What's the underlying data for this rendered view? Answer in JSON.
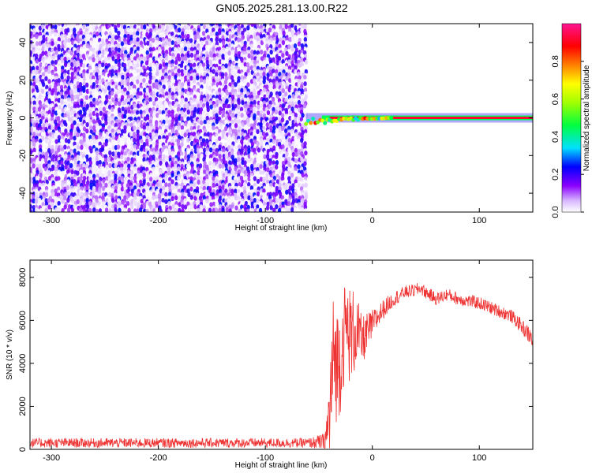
{
  "title": "GN05.2025.281.13.00.R22",
  "chart_data": [
    {
      "type": "heatmap",
      "name": "spectrogram",
      "xlabel": "Height of straight line (km)",
      "ylabel": "Frequency (Hz)",
      "xlim": [
        -320,
        150
      ],
      "ylim": [
        -50,
        50
      ],
      "xticks": [
        -300,
        -200,
        -100,
        0,
        100
      ],
      "yticks": [
        -40,
        -20,
        0,
        20,
        40
      ],
      "noise_region_x": [
        -320,
        -62
      ],
      "noise_frequency_range": [
        -50,
        50
      ],
      "noise_amplitude_range": [
        0.0,
        0.25
      ],
      "carrier_frequency": 0,
      "carrier_start_x": -62,
      "carrier_amplitude_range": [
        0.25,
        1.0
      ],
      "colorbar": {
        "label": "Normalized spectral amplitude",
        "range": [
          0.0,
          1.0
        ],
        "ticks": [
          0.0,
          0.2,
          0.4,
          0.6,
          0.8
        ],
        "colors": [
          "#ffffff",
          "#8b00ff",
          "#0000ff",
          "#00ffff",
          "#00ff00",
          "#ffff00",
          "#ff8000",
          "#ff0000",
          "#ff00aa"
        ]
      }
    },
    {
      "type": "line",
      "name": "snr",
      "xlabel": "Height of straight line (km)",
      "ylabel": "SNR (10 * v/v)",
      "xlim": [
        -320,
        150
      ],
      "ylim": [
        0,
        8800
      ],
      "xticks": [
        -300,
        -200,
        -100,
        0,
        100
      ],
      "yticks": [
        0,
        2000,
        4000,
        6000,
        8000
      ],
      "color": "#ee3333",
      "series": [
        {
          "name": "SNR",
          "x": [
            -320,
            -300,
            -250,
            -200,
            -150,
            -100,
            -60,
            -45,
            -42,
            -40,
            -38,
            -36,
            -34,
            -30,
            -25,
            -20,
            -15,
            -10,
            0,
            10,
            20,
            30,
            40,
            45,
            50,
            60,
            70,
            80,
            90,
            100,
            110,
            120,
            130,
            140,
            150
          ],
          "y": [
            300,
            300,
            300,
            300,
            300,
            300,
            300,
            350,
            800,
            1600,
            3000,
            4500,
            4000,
            4200,
            5800,
            5200,
            5600,
            5000,
            5800,
            6500,
            7000,
            7300,
            7400,
            7500,
            7300,
            7000,
            7200,
            7000,
            6900,
            6800,
            6600,
            6400,
            6200,
            5700,
            5100
          ],
          "noise": [
            220,
            220,
            220,
            220,
            220,
            220,
            220,
            400,
            1500,
            2500,
            3000,
            3000,
            2800,
            2600,
            2200,
            2400,
            1800,
            1200,
            700,
            450,
            350,
            300,
            300,
            300,
            300,
            300,
            300,
            300,
            300,
            300,
            300,
            300,
            300,
            350,
            400
          ]
        }
      ]
    }
  ]
}
